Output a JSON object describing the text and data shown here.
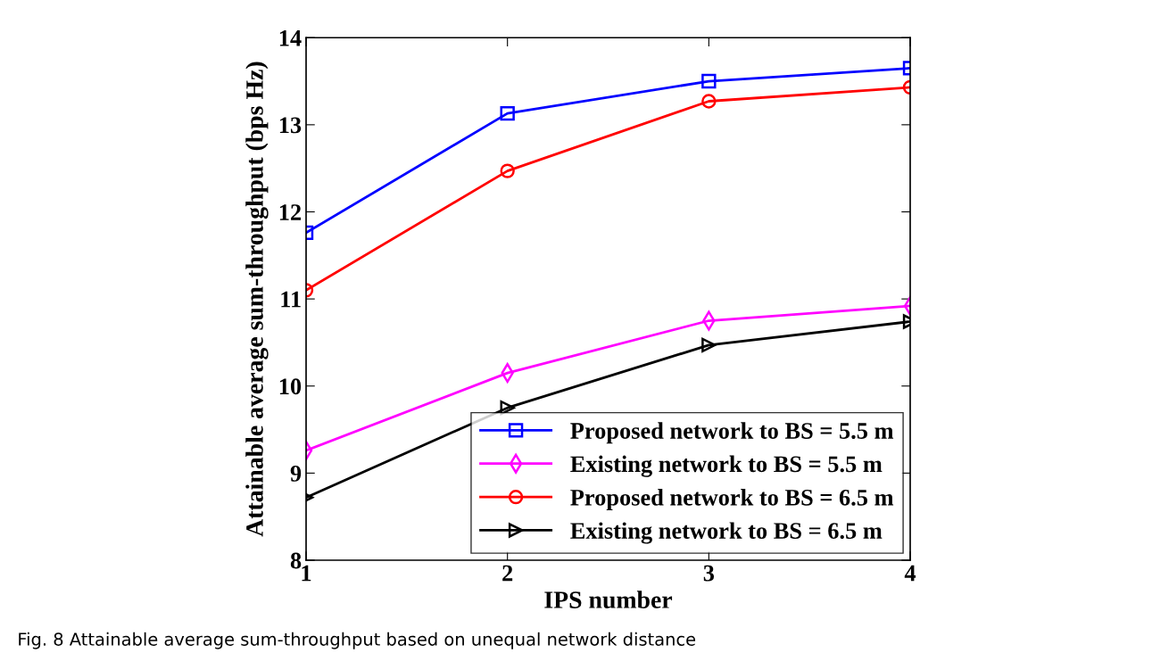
{
  "chart_data": {
    "type": "line",
    "xlabel": "IPS number",
    "ylabel": "Attainable average sum-throughput (bps Hz)",
    "x": [
      1,
      2,
      3,
      4
    ],
    "xlim": [
      1,
      4
    ],
    "xticks": [
      1,
      2,
      3,
      4
    ],
    "ylim": [
      8,
      14
    ],
    "yticks": [
      8,
      9,
      10,
      11,
      12,
      13,
      14
    ],
    "grid": false,
    "legend": "bottom right",
    "line_style": "solid",
    "series": [
      {
        "name": "Proposed network to BS = 5.5 m",
        "color": "#0000ff",
        "marker": "square",
        "values": [
          11.76,
          13.13,
          13.5,
          13.65
        ]
      },
      {
        "name": "Existing network to BS = 5.5 m",
        "color": "#ff00ff",
        "marker": "diamond",
        "values": [
          9.26,
          10.15,
          10.75,
          10.92
        ]
      },
      {
        "name": "Proposed network to BS = 6.5 m",
        "color": "#ff0000",
        "marker": "circle",
        "values": [
          11.1,
          12.47,
          13.27,
          13.43
        ]
      },
      {
        "name": "Existing network to BS = 6.5 m",
        "color": "#000000",
        "marker": "triangle",
        "values": [
          8.72,
          9.75,
          10.47,
          10.74
        ]
      }
    ],
    "annotations": [
      "Fig. 8 Attainable average sum-throughput based on unequal network distance"
    ]
  }
}
